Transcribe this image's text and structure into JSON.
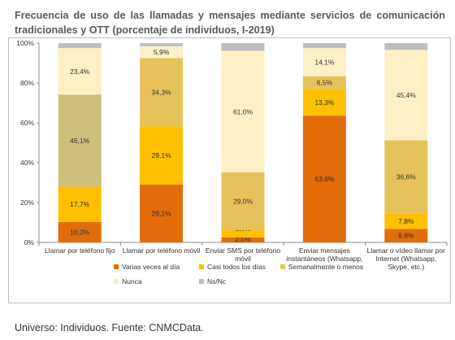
{
  "title": "Frecuencia de uso de las llamadas y mensajes mediante servicios de comunicación tradicionales y OTT (porcentaje de individuos, I-2019)",
  "source": "Universo: Individuos. Fuente: CNMCData.",
  "chart_data": {
    "type": "bar",
    "stacked": true,
    "ylim": [
      0,
      100
    ],
    "y_ticks": [
      "0%",
      "20%",
      "40%",
      "60%",
      "80%",
      "100%"
    ],
    "grid": false,
    "legend_position": "bottom",
    "categories": [
      [
        "Llamar por teléfono fijo"
      ],
      [
        "Llamar por teléfono móvil"
      ],
      [
        "Enviar SMS por teléfono",
        "móvil"
      ],
      [
        "Enviar mensajes",
        "instantáneos (Whatsapp,",
        "..."
      ],
      [
        "Llamar o vídeo llamar por",
        "Internet (Whatsapp,",
        "Skype, etc.)"
      ]
    ],
    "series": [
      {
        "name": "Varias veces al día",
        "color": "#e36c0a",
        "values": [
          10.3,
          29.1,
          2.5,
          63.6,
          6.8
        ],
        "labels": [
          "10,3%",
          "29,1%",
          "2,5%",
          "63,6%",
          "6,8%"
        ]
      },
      {
        "name": "Casi todos los días",
        "color": "#ffc000",
        "values": [
          17.7,
          29.1,
          3.6,
          13.3,
          7.8
        ],
        "labels": [
          "17,7%",
          "29,1%",
          "3,6%",
          "13,3%",
          "7,8%"
        ]
      },
      {
        "name": "Semanalmente o menos",
        "color": "#e6c35a",
        "values": [
          46.1,
          34.3,
          29.0,
          6.5,
          36.6
        ],
        "labels": [
          "46,1%",
          "34,3%",
          "29,0%",
          "6,5%",
          "36,6%"
        ]
      },
      {
        "name": "Nunca",
        "color": "#fdf0c4",
        "values": [
          23.4,
          5.9,
          61.0,
          14.1,
          45.4
        ],
        "labels": [
          "23,4%",
          "5,9%",
          "61,0%",
          "14,1%",
          "45,4%"
        ]
      },
      {
        "name": "Ns/Nc",
        "color": "#bfbfbf",
        "values": [
          2.5,
          1.6,
          3.9,
          2.5,
          3.4
        ],
        "labels": [
          "",
          "",
          "",
          "",
          ""
        ]
      }
    ],
    "first_bar_semanal_color": "#cdc07a"
  }
}
